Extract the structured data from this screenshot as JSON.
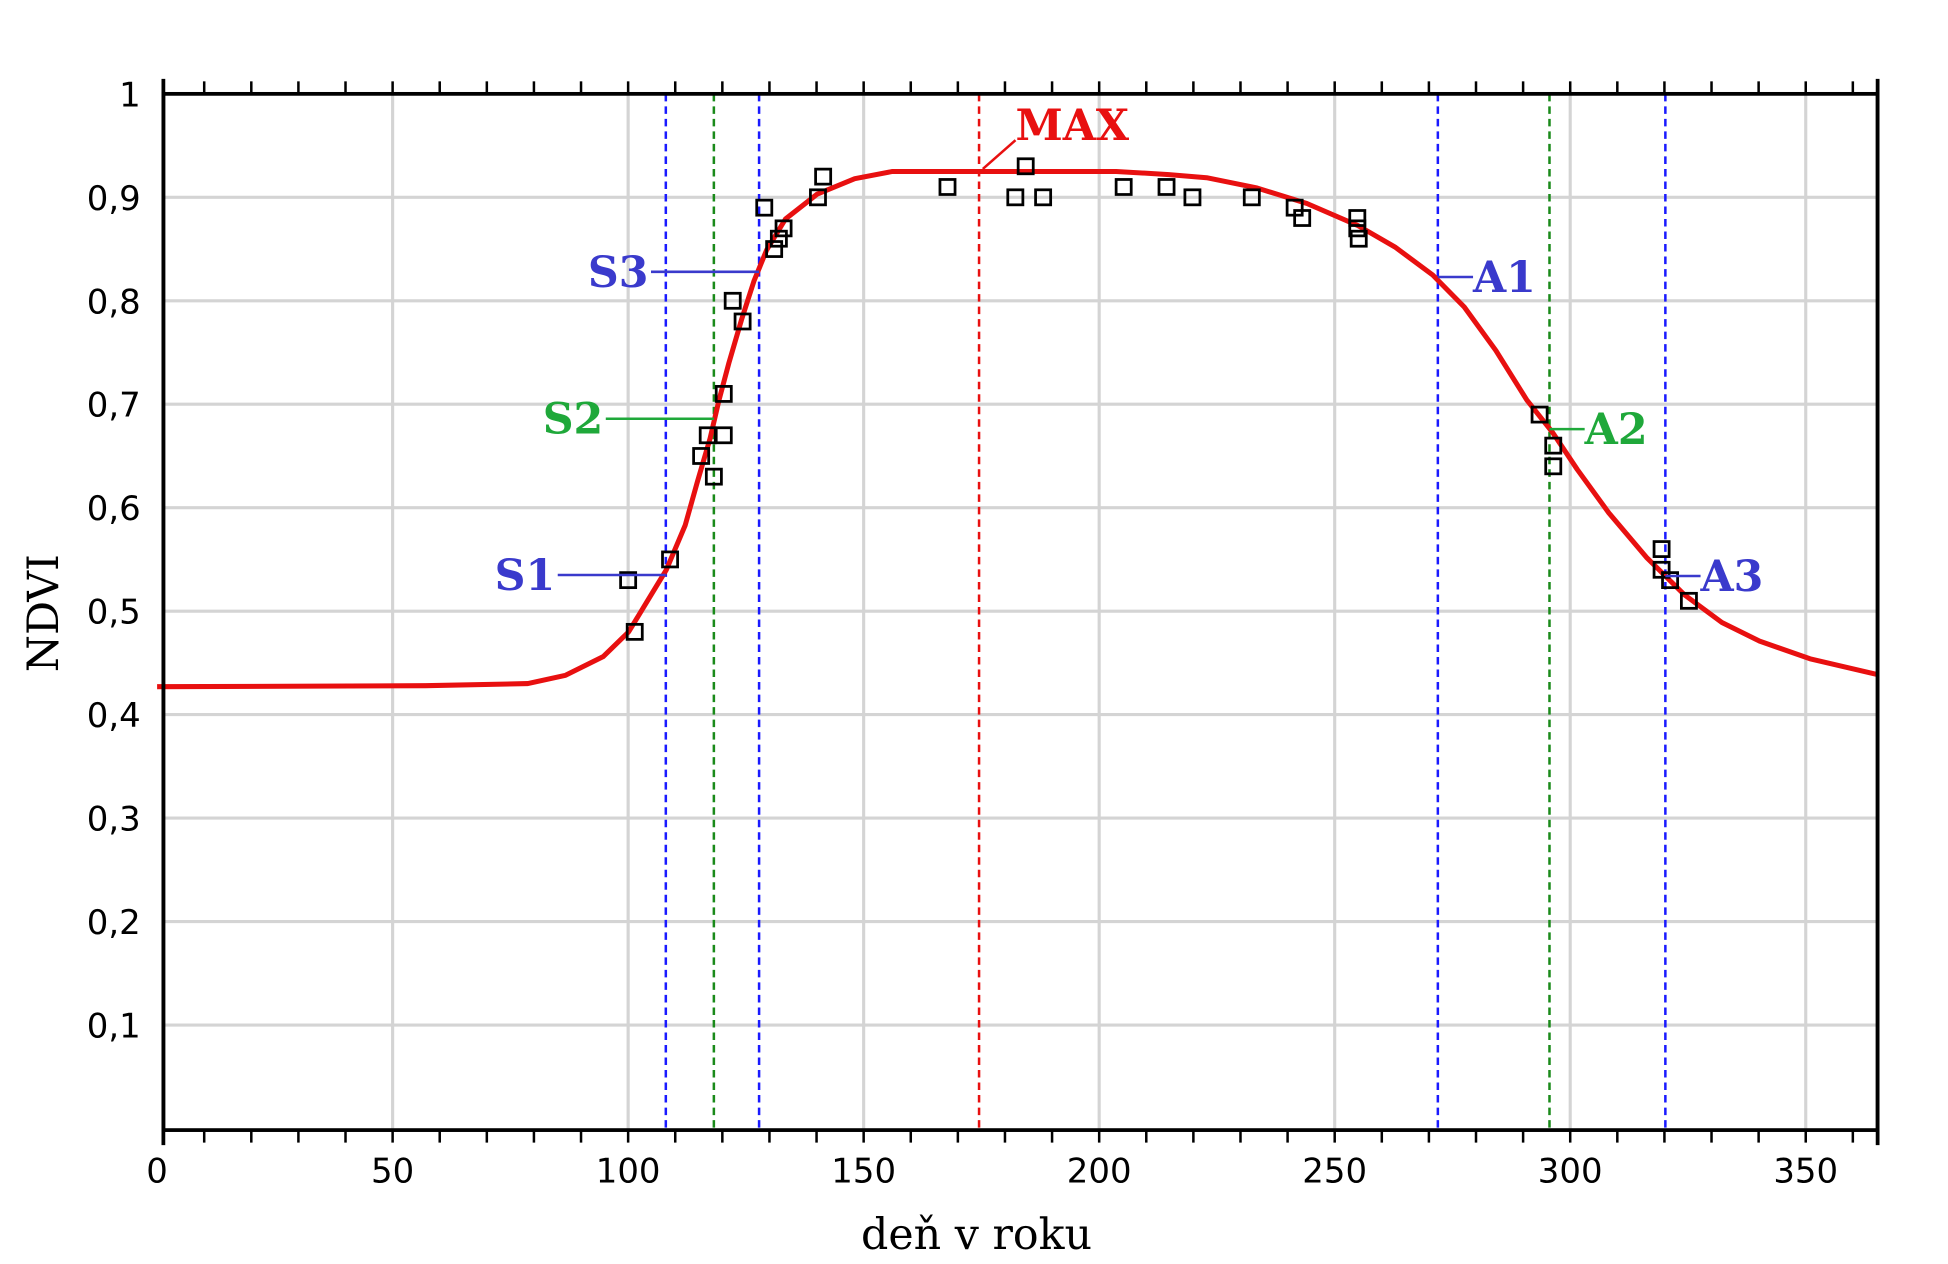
{
  "chart_data": {
    "type": "scatter",
    "title": "",
    "xlabel": "deň v roku",
    "ylabel": "NDVI",
    "xlim": [
      0,
      365
    ],
    "ylim": [
      0,
      1
    ],
    "grid": true,
    "x_ticks": [
      0,
      50,
      100,
      150,
      200,
      250,
      300,
      350
    ],
    "x_tick_labels": [
      "0",
      "50",
      "100",
      "150",
      "200",
      "250",
      "300",
      "350"
    ],
    "y_ticks": [
      0.1,
      0.2,
      0.3,
      0.4,
      0.5,
      0.6,
      0.7,
      0.8,
      0.9,
      1
    ],
    "y_tick_labels": [
      "0,1",
      "0,2",
      "0,3",
      "0,4",
      "0,5",
      "0,6",
      "0,7",
      "0,8",
      "0,9",
      "1"
    ],
    "observations": [
      [
        100,
        0.53
      ],
      [
        101.4,
        0.48
      ],
      [
        108.9,
        0.55
      ],
      [
        115.5,
        0.65
      ],
      [
        116.9,
        0.67
      ],
      [
        118.2,
        0.63
      ],
      [
        120.3,
        0.67
      ],
      [
        120.3,
        0.71
      ],
      [
        122.2,
        0.8
      ],
      [
        124.3,
        0.78
      ],
      [
        128.9,
        0.89
      ],
      [
        131,
        0.85
      ],
      [
        132,
        0.86
      ],
      [
        133,
        0.87
      ],
      [
        140.3,
        0.9
      ],
      [
        141.4,
        0.92
      ],
      [
        167.8,
        0.91
      ],
      [
        182.2,
        0.9
      ],
      [
        184.4,
        0.93
      ],
      [
        188.1,
        0.9
      ],
      [
        205.2,
        0.91
      ],
      [
        214.3,
        0.91
      ],
      [
        219.8,
        0.9
      ],
      [
        232.4,
        0.9
      ],
      [
        241.5,
        0.89
      ],
      [
        243.1,
        0.88
      ],
      [
        254.8,
        0.88
      ],
      [
        254.8,
        0.87
      ],
      [
        255.1,
        0.86
      ],
      [
        293.5,
        0.69
      ],
      [
        296.4,
        0.66
      ],
      [
        296.4,
        0.64
      ],
      [
        319.4,
        0.56
      ],
      [
        319.4,
        0.54
      ],
      [
        321.2,
        0.53
      ],
      [
        325.2,
        0.51
      ]
    ],
    "fitted_curve": {
      "color": "#e81010",
      "points": [
        [
          0,
          0.427
        ],
        [
          57,
          0.428
        ],
        [
          78.7,
          0.43
        ],
        [
          86.7,
          0.438
        ],
        [
          94.7,
          0.456
        ],
        [
          100.1,
          0.48
        ],
        [
          104.1,
          0.51
        ],
        [
          108.1,
          0.54
        ],
        [
          112.1,
          0.583
        ],
        [
          114.7,
          0.625
        ],
        [
          117.4,
          0.667
        ],
        [
          119.3,
          0.704
        ],
        [
          121.4,
          0.74
        ],
        [
          124.1,
          0.782
        ],
        [
          126.7,
          0.819
        ],
        [
          129.4,
          0.849
        ],
        [
          133.4,
          0.879
        ],
        [
          140.1,
          0.903
        ],
        [
          148.1,
          0.918
        ],
        [
          156.1,
          0.925
        ],
        [
          203.6,
          0.925
        ],
        [
          214.8,
          0.922
        ],
        [
          222.8,
          0.919
        ],
        [
          233.5,
          0.909
        ],
        [
          244.1,
          0.894
        ],
        [
          254.8,
          0.873
        ],
        [
          262.8,
          0.852
        ],
        [
          270.8,
          0.825
        ],
        [
          277.5,
          0.794
        ],
        [
          284.2,
          0.752
        ],
        [
          290.8,
          0.704
        ],
        [
          296.2,
          0.673
        ],
        [
          301.5,
          0.637
        ],
        [
          308.2,
          0.595
        ],
        [
          316.2,
          0.552
        ],
        [
          324.2,
          0.516
        ],
        [
          332.2,
          0.489
        ],
        [
          340.2,
          0.471
        ],
        [
          350.9,
          0.454
        ],
        [
          365,
          0.439
        ]
      ]
    },
    "markers": [
      {
        "label": "S1",
        "day": 108,
        "ndvi": 0.535,
        "color": "#3a3acc",
        "side": "left"
      },
      {
        "label": "S2",
        "day": 118.2,
        "ndvi": 0.686,
        "color": "#1fa83a",
        "side": "left"
      },
      {
        "label": "S3",
        "day": 127.8,
        "ndvi": 0.828,
        "color": "#3a3acc",
        "side": "left"
      },
      {
        "label": "MAX",
        "day": 174.5,
        "ndvi": 0.925,
        "color": "#e81010",
        "side": "top"
      },
      {
        "label": "A1",
        "day": 271.9,
        "ndvi": 0.823,
        "color": "#3a3acc",
        "side": "right"
      },
      {
        "label": "A2",
        "day": 295.6,
        "ndvi": 0.676,
        "color": "#1fa83a",
        "side": "right"
      },
      {
        "label": "A3",
        "day": 320.2,
        "ndvi": 0.534,
        "color": "#3a3acc",
        "side": "right"
      }
    ],
    "line_colors": {
      "blue": "#1a1aff",
      "green": "#1a8a1a",
      "red": "#e81010"
    }
  }
}
